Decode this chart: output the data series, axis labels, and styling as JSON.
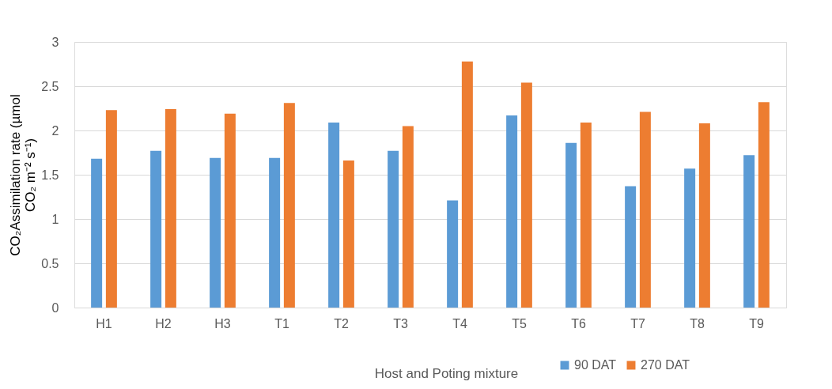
{
  "chart_data": {
    "type": "bar",
    "xlabel": "Host and Poting mixture",
    "ylabel": "CO₂Assimilation rate  (µmol CO₂ m⁻² s⁻¹)",
    "categories": [
      "H1",
      "H2",
      "H3",
      "T1",
      "T2",
      "T3",
      "T4",
      "T5",
      "T6",
      "T7",
      "T8",
      "T9"
    ],
    "series": [
      {
        "name": "90 DAT",
        "color": "#5b9bd5",
        "values": [
          1.68,
          1.77,
          1.69,
          1.69,
          2.09,
          1.77,
          1.21,
          2.17,
          1.86,
          1.37,
          1.57,
          1.72
        ]
      },
      {
        "name": "270 DAT",
        "color": "#ed7d31",
        "values": [
          2.23,
          2.24,
          2.19,
          2.31,
          1.66,
          2.05,
          2.78,
          2.54,
          2.09,
          2.21,
          2.08,
          2.32
        ]
      }
    ],
    "ylim": [
      0,
      3
    ],
    "yticks": [
      0,
      0.5,
      1,
      1.5,
      2,
      2.5,
      3
    ],
    "grid": "y",
    "legend": "bottom right"
  }
}
